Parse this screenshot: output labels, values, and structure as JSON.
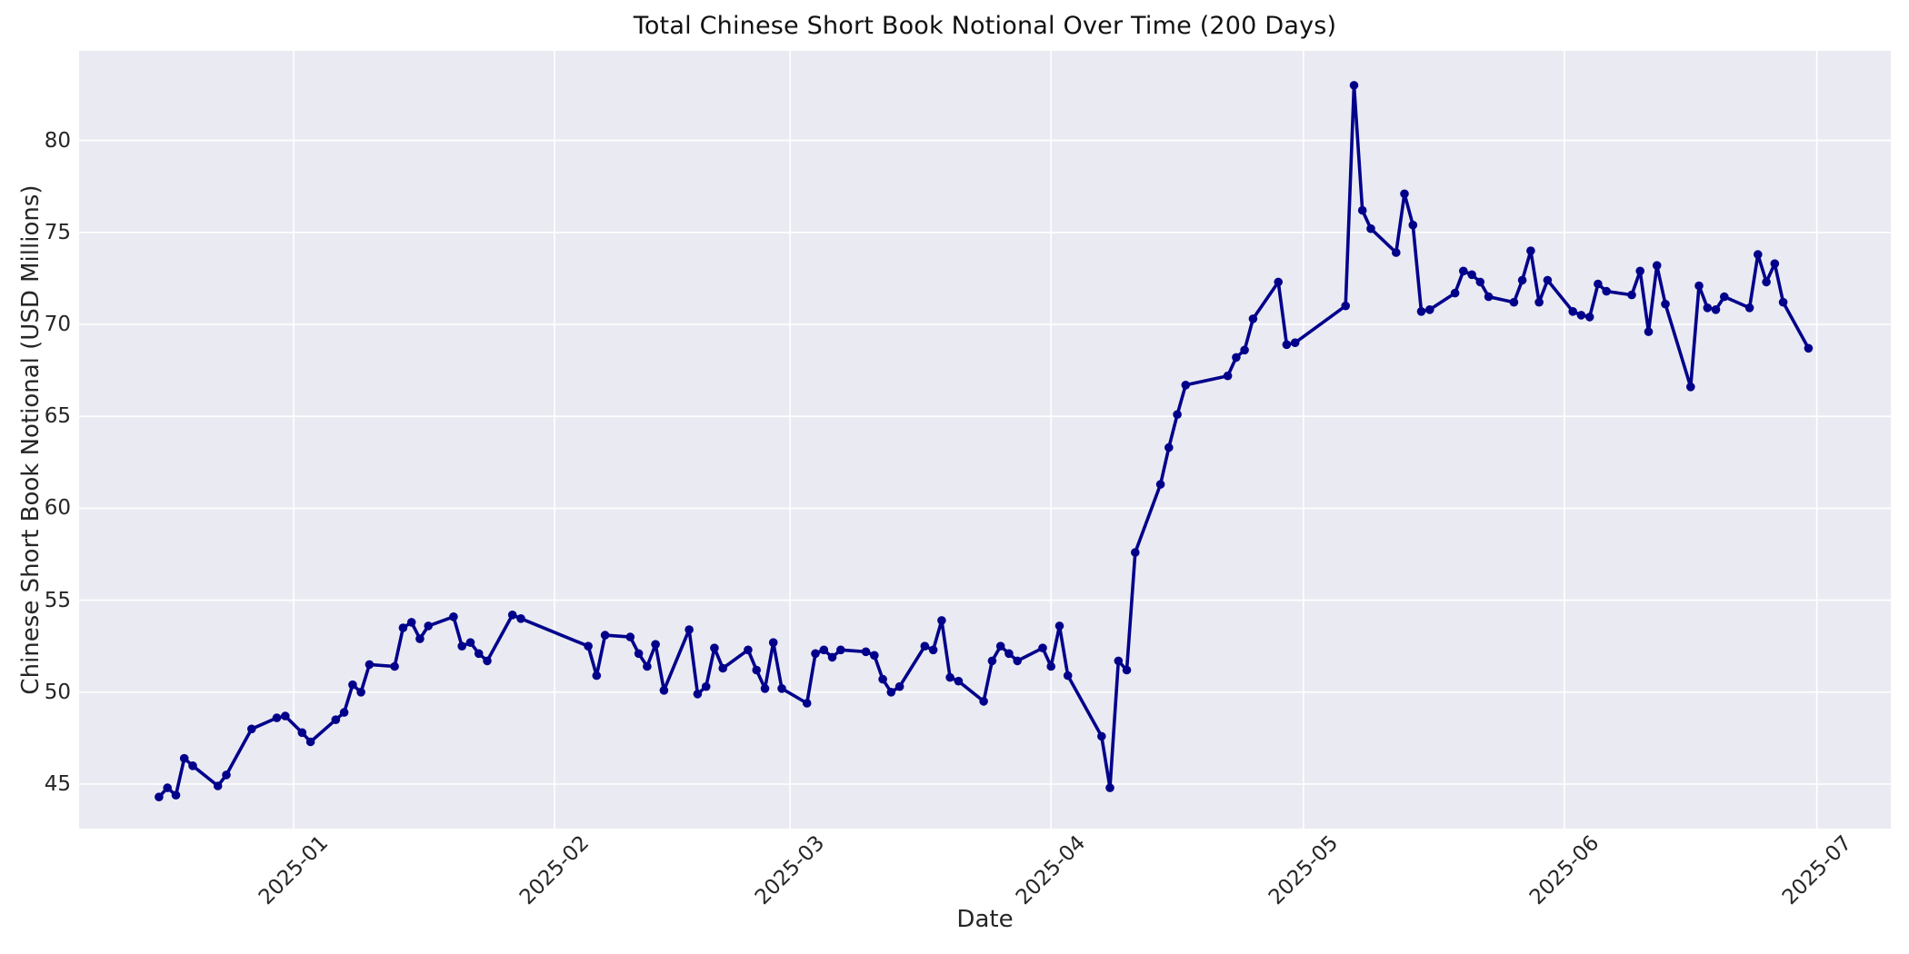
{
  "chart_data": {
    "type": "line",
    "title": "Total Chinese Short Book Notional Over Time (200 Days)",
    "xlabel": "Date",
    "ylabel": "Chinese Short Book Notional (USD Millions)",
    "legend": null,
    "grid": true,
    "plot_bg": "#eaeaf2",
    "grid_color": "#ffffff",
    "tick_color": "#262626",
    "line_color": "#00008b",
    "marker": "circle",
    "ylim": [
      42.58,
      84.87
    ],
    "xlim": [
      "2024-12-06T12:00:00Z",
      "2025-07-09T19:00:00Z"
    ],
    "yticks": [
      45,
      50,
      55,
      60,
      65,
      70,
      75,
      80
    ],
    "xticks": [
      {
        "label": "2025-01",
        "date": "2025-01-01"
      },
      {
        "label": "2025-02",
        "date": "2025-02-01"
      },
      {
        "label": "2025-03",
        "date": "2025-03-01"
      },
      {
        "label": "2025-04",
        "date": "2025-04-01"
      },
      {
        "label": "2025-05",
        "date": "2025-05-01"
      },
      {
        "label": "2025-06",
        "date": "2025-06-01"
      },
      {
        "label": "2025-07",
        "date": "2025-07-01"
      }
    ],
    "series": [
      {
        "name": "total-chinese-short-book-notional",
        "dates": [
          "2024-12-16",
          "2024-12-17",
          "2024-12-18",
          "2024-12-19",
          "2024-12-20",
          "2024-12-23",
          "2024-12-24",
          "2024-12-27",
          "2024-12-30",
          "2024-12-31",
          "2025-01-02",
          "2025-01-03",
          "2025-01-06",
          "2025-01-07",
          "2025-01-08",
          "2025-01-09",
          "2025-01-10",
          "2025-01-13",
          "2025-01-14",
          "2025-01-15",
          "2025-01-16",
          "2025-01-17",
          "2025-01-20",
          "2025-01-21",
          "2025-01-22",
          "2025-01-23",
          "2025-01-24",
          "2025-01-27",
          "2025-01-28",
          "2025-02-05",
          "2025-02-06",
          "2025-02-07",
          "2025-02-10",
          "2025-02-11",
          "2025-02-12",
          "2025-02-13",
          "2025-02-14",
          "2025-02-17",
          "2025-02-18",
          "2025-02-19",
          "2025-02-20",
          "2025-02-21",
          "2025-02-24",
          "2025-02-25",
          "2025-02-26",
          "2025-02-27",
          "2025-02-28",
          "2025-03-03",
          "2025-03-04",
          "2025-03-05",
          "2025-03-06",
          "2025-03-07",
          "2025-03-10",
          "2025-03-11",
          "2025-03-12",
          "2025-03-13",
          "2025-03-14",
          "2025-03-17",
          "2025-03-18",
          "2025-03-19",
          "2025-03-20",
          "2025-03-21",
          "2025-03-24",
          "2025-03-25",
          "2025-03-26",
          "2025-03-27",
          "2025-03-28",
          "2025-03-31",
          "2025-04-01",
          "2025-04-02",
          "2025-04-03",
          "2025-04-07",
          "2025-04-08",
          "2025-04-09",
          "2025-04-10",
          "2025-04-11",
          "2025-04-14",
          "2025-04-15",
          "2025-04-16",
          "2025-04-17",
          "2025-04-22",
          "2025-04-23",
          "2025-04-24",
          "2025-04-25",
          "2025-04-28",
          "2025-04-29",
          "2025-04-30",
          "2025-05-06",
          "2025-05-07",
          "2025-05-08",
          "2025-05-09",
          "2025-05-12",
          "2025-05-13",
          "2025-05-14",
          "2025-05-15",
          "2025-05-16",
          "2025-05-19",
          "2025-05-20",
          "2025-05-21",
          "2025-05-22",
          "2025-05-23",
          "2025-05-26",
          "2025-05-27",
          "2025-05-28",
          "2025-05-29",
          "2025-05-30",
          "2025-06-02",
          "2025-06-03",
          "2025-06-04",
          "2025-06-05",
          "2025-06-06",
          "2025-06-09",
          "2025-06-10",
          "2025-06-11",
          "2025-06-12",
          "2025-06-13",
          "2025-06-16",
          "2025-06-17",
          "2025-06-18",
          "2025-06-19",
          "2025-06-20",
          "2025-06-23",
          "2025-06-24",
          "2025-06-25",
          "2025-06-26",
          "2025-06-27",
          "2025-06-30"
        ],
        "values": [
          44.3,
          44.8,
          44.4,
          46.4,
          46.0,
          44.9,
          45.5,
          48.0,
          48.6,
          48.7,
          47.8,
          47.3,
          48.5,
          48.9,
          50.4,
          50.0,
          51.5,
          51.4,
          53.5,
          53.8,
          52.9,
          53.6,
          54.1,
          52.5,
          52.7,
          52.1,
          51.7,
          54.2,
          54.0,
          52.5,
          50.9,
          53.1,
          53.0,
          52.1,
          51.4,
          52.6,
          50.1,
          53.4,
          49.9,
          50.3,
          52.4,
          51.3,
          52.3,
          51.2,
          50.2,
          52.7,
          50.2,
          49.4,
          52.1,
          52.3,
          51.9,
          52.3,
          52.2,
          52.0,
          50.7,
          50.0,
          50.3,
          52.5,
          52.3,
          53.9,
          50.8,
          50.6,
          49.5,
          51.7,
          52.5,
          52.1,
          51.7,
          52.4,
          51.4,
          53.6,
          50.9,
          47.6,
          44.8,
          51.7,
          51.2,
          57.6,
          61.3,
          63.3,
          65.1,
          66.7,
          67.2,
          68.2,
          68.6,
          70.3,
          72.3,
          68.9,
          69.0,
          71.0,
          83.0,
          76.2,
          75.2,
          73.9,
          77.1,
          75.4,
          70.7,
          70.8,
          71.7,
          72.9,
          72.7,
          72.3,
          71.5,
          71.2,
          72.4,
          74.0,
          71.2,
          72.4,
          70.7,
          70.5,
          70.4,
          72.2,
          71.8,
          71.6,
          72.9,
          69.6,
          73.2,
          71.1,
          66.6,
          72.1,
          70.9,
          70.8,
          71.5,
          70.9,
          73.8,
          72.3,
          73.3,
          71.2,
          68.7
        ]
      }
    ]
  }
}
